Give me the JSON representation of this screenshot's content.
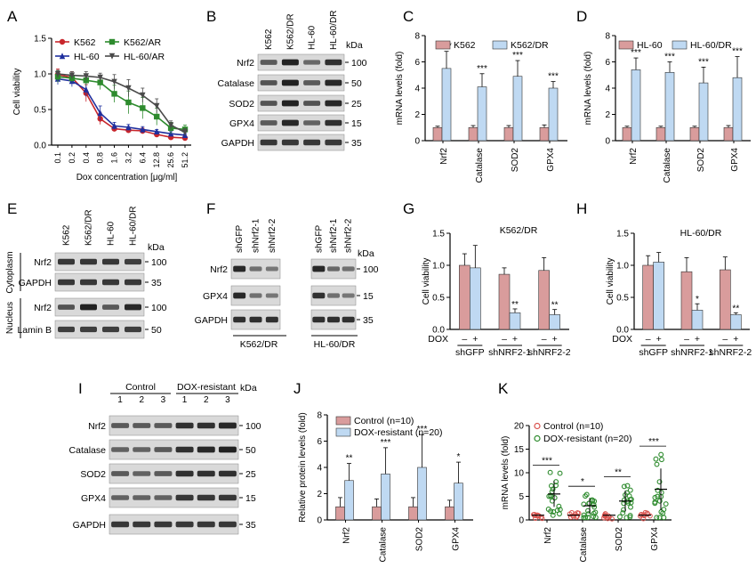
{
  "colors": {
    "red": "#c8262c",
    "blue": "#1f2f9e",
    "green": "#2e8b2e",
    "darkgray": "#4a4a4a",
    "pink": "#d99c9c",
    "lightblue": "#bfd9f2",
    "ctrl_red": "#d9534f",
    "res_green": "#2e8b2e",
    "blot_bg": "#d9d9d9",
    "band": "#1a1a1a"
  },
  "panelA": {
    "letter": "A",
    "ylabel": "Cell viability",
    "xlabel": "Dox concentration [μg/ml]",
    "chart_data": {
      "type": "line",
      "x": [
        "0.1",
        "0.2",
        "0.4",
        "0.8",
        "1.6",
        "3.2",
        "6.4",
        "12.8",
        "25.6",
        "51.2"
      ],
      "ylim": [
        0,
        1.5
      ],
      "yticks": [
        "0.0",
        "0.5",
        "1.0",
        "1.5"
      ],
      "series": [
        {
          "name": "K562",
          "color": "#c8262c",
          "marker": "circle",
          "values": [
            0.99,
            0.95,
            0.73,
            0.37,
            0.23,
            0.21,
            0.2,
            0.15,
            0.11,
            0.1
          ],
          "err": [
            0.08,
            0.08,
            0.12,
            0.08,
            0.04,
            0.04,
            0.04,
            0.03,
            0.02,
            0.02
          ]
        },
        {
          "name": "HL-60",
          "color": "#1f2f9e",
          "marker": "triangle",
          "values": [
            0.93,
            0.9,
            0.78,
            0.45,
            0.27,
            0.25,
            0.22,
            0.19,
            0.16,
            0.14
          ],
          "err": [
            0.08,
            0.08,
            0.1,
            0.1,
            0.05,
            0.04,
            0.04,
            0.03,
            0.03,
            0.02
          ]
        },
        {
          "name": "K562/AR",
          "color": "#2e8b2e",
          "marker": "square",
          "values": [
            0.96,
            0.94,
            0.91,
            0.88,
            0.72,
            0.6,
            0.52,
            0.4,
            0.24,
            0.22
          ],
          "err": [
            0.08,
            0.06,
            0.07,
            0.1,
            0.12,
            0.16,
            0.15,
            0.12,
            0.08,
            0.06
          ]
        },
        {
          "name": "HL-60/AR",
          "color": "#4a4a4a",
          "marker": "triangle-down",
          "values": [
            1.0,
            0.98,
            0.97,
            0.95,
            0.89,
            0.8,
            0.7,
            0.55,
            0.28,
            0.18
          ],
          "err": [
            0.05,
            0.05,
            0.06,
            0.06,
            0.1,
            0.12,
            0.1,
            0.1,
            0.06,
            0.05
          ]
        }
      ]
    }
  },
  "panelB": {
    "letter": "B",
    "kda": "kDa",
    "lanes": [
      "K562",
      "K562/DR",
      "HL-60",
      "HL-60/DR"
    ],
    "rows": [
      {
        "label": "Nrf2",
        "marker": "100",
        "bands": [
          0.55,
          0.95,
          0.45,
          0.85
        ]
      },
      {
        "label": "Catalase",
        "marker": "50",
        "bands": [
          0.6,
          0.95,
          0.55,
          0.9
        ]
      },
      {
        "label": "SOD2",
        "marker": "25",
        "bands": [
          0.6,
          0.95,
          0.6,
          0.9
        ]
      },
      {
        "label": "GPX4",
        "marker": "15",
        "bands": [
          0.55,
          0.9,
          0.5,
          0.85
        ]
      },
      {
        "label": "GAPDH",
        "marker": "35",
        "bands": [
          0.8,
          0.8,
          0.8,
          0.8
        ]
      }
    ]
  },
  "panelC": {
    "letter": "C",
    "ylabel": "mRNA levels (fold)",
    "chart_data": {
      "type": "bar",
      "categories": [
        "Nrf2",
        "Catalase",
        "SOD2",
        "GPX4"
      ],
      "ylim": [
        0,
        8
      ],
      "yticks": [
        "0",
        "2",
        "4",
        "6",
        "8"
      ],
      "series": [
        {
          "name": "K562",
          "color": "#d99c9c",
          "values": [
            1,
            1,
            1,
            1
          ],
          "err": [
            0.1,
            0.15,
            0.15,
            0.2
          ]
        },
        {
          "name": "K562/DR",
          "color": "#bfd9f2",
          "values": [
            5.5,
            4.1,
            4.9,
            4.0
          ],
          "err": [
            1.3,
            1.0,
            1.2,
            0.5
          ]
        }
      ],
      "sig": [
        "***",
        "***",
        "***",
        "***"
      ]
    }
  },
  "panelD": {
    "letter": "D",
    "ylabel": "mRNA levels (fold)",
    "chart_data": {
      "type": "bar",
      "categories": [
        "Nrf2",
        "Catalase",
        "SOD2",
        "GPX4"
      ],
      "ylim": [
        0,
        8
      ],
      "yticks": [
        "0",
        "2",
        "4",
        "6",
        "8"
      ],
      "series": [
        {
          "name": "HL-60",
          "color": "#d99c9c",
          "values": [
            1,
            1,
            1,
            1
          ],
          "err": [
            0.1,
            0.1,
            0.1,
            0.15
          ]
        },
        {
          "name": "HL-60/DR",
          "color": "#bfd9f2",
          "values": [
            5.4,
            5.2,
            4.4,
            4.8
          ],
          "err": [
            0.9,
            0.8,
            1.2,
            1.6
          ]
        }
      ],
      "sig": [
        "***",
        "***",
        "***",
        "***"
      ]
    }
  },
  "panelE": {
    "letter": "E",
    "kda": "kDa",
    "lanes": [
      "K562",
      "K562/DR",
      "HL-60",
      "HL-60/DR"
    ],
    "groups": [
      "Cytoplasm",
      "Nucleus"
    ],
    "rows": [
      {
        "label": "Nrf2",
        "marker": "100",
        "group": 0,
        "bands": [
          0.8,
          0.8,
          0.8,
          0.75
        ]
      },
      {
        "label": "GAPDH",
        "marker": "35",
        "group": 0,
        "bands": [
          0.8,
          0.8,
          0.8,
          0.8
        ]
      },
      {
        "label": "Nrf2",
        "marker": "100",
        "group": 1,
        "bands": [
          0.6,
          0.95,
          0.55,
          0.9
        ]
      },
      {
        "label": "Lamin B",
        "marker": "50",
        "group": 1,
        "bands": [
          0.75,
          0.75,
          0.75,
          0.75
        ]
      }
    ]
  },
  "panelF": {
    "letter": "F",
    "kda": "kDa",
    "lanes": [
      "shGFP",
      "shNrf2-1",
      "shNrf2-2",
      "shGFP",
      "shNrf2-1",
      "shNrf2-2"
    ],
    "groups": [
      "K562/DR",
      "HL-60/DR"
    ],
    "rows": [
      {
        "label": "Nrf2",
        "marker": "100",
        "bands": [
          0.9,
          0.4,
          0.35,
          0.9,
          0.45,
          0.4
        ]
      },
      {
        "label": "GPX4",
        "marker": "15",
        "bands": [
          0.9,
          0.4,
          0.35,
          0.85,
          0.4,
          0.35
        ]
      },
      {
        "label": "GAPDH",
        "marker": "35",
        "bands": [
          0.85,
          0.85,
          0.85,
          0.85,
          0.85,
          0.85
        ]
      }
    ]
  },
  "panelG": {
    "letter": "G",
    "title": "K562/DR",
    "ylabel": "Cell viability",
    "dox": "DOX",
    "signs": [
      "–",
      "+",
      "–",
      "+",
      "–",
      "+"
    ],
    "groups": [
      "shGFP",
      "shNRF2-1",
      "shNRF2-2"
    ],
    "chart_data": {
      "type": "bar",
      "ylim": [
        0,
        1.5
      ],
      "yticks": [
        "0.0",
        "0.5",
        "1.0",
        "1.5"
      ],
      "values": [
        1.0,
        0.96,
        0.86,
        0.26,
        0.92,
        0.23
      ],
      "err": [
        0.18,
        0.35,
        0.1,
        0.06,
        0.2,
        0.08
      ],
      "sig": [
        "",
        "",
        "",
        "**",
        "",
        "**"
      ]
    }
  },
  "panelH": {
    "letter": "H",
    "title": "HL-60/DR",
    "ylabel": "Cell viability",
    "dox": "DOX",
    "signs": [
      "–",
      "+",
      "–",
      "+",
      "–",
      "+"
    ],
    "groups": [
      "shGFP",
      "shNRF2-1",
      "shNRF2-2"
    ],
    "chart_data": {
      "type": "bar",
      "ylim": [
        0,
        1.5
      ],
      "yticks": [
        "0.0",
        "0.5",
        "1.0",
        "1.5"
      ],
      "values": [
        1.0,
        1.05,
        0.9,
        0.3,
        0.93,
        0.23
      ],
      "err": [
        0.15,
        0.15,
        0.22,
        0.1,
        0.2,
        0.03
      ],
      "sig": [
        "",
        "",
        "",
        "*",
        "",
        "**"
      ]
    }
  },
  "panelI": {
    "letter": "I",
    "kda": "kDa",
    "groups": [
      "Control",
      "DOX-resistant"
    ],
    "lanes": [
      "1",
      "2",
      "3",
      "1",
      "2",
      "3"
    ],
    "rows": [
      {
        "label": "Nrf2",
        "marker": "100",
        "bands": [
          0.55,
          0.55,
          0.55,
          0.85,
          0.85,
          0.9
        ]
      },
      {
        "label": "Catalase",
        "marker": "50",
        "bands": [
          0.5,
          0.5,
          0.55,
          0.85,
          0.9,
          0.95
        ]
      },
      {
        "label": "SOD2",
        "marker": "25",
        "bands": [
          0.55,
          0.5,
          0.55,
          0.85,
          0.85,
          0.85
        ]
      },
      {
        "label": "GPX4",
        "marker": "15",
        "bands": [
          0.5,
          0.5,
          0.5,
          0.8,
          0.8,
          0.8
        ]
      },
      {
        "label": "GAPDH",
        "marker": "35",
        "bands": [
          0.8,
          0.8,
          0.8,
          0.8,
          0.8,
          0.8
        ]
      }
    ]
  },
  "panelJ": {
    "letter": "J",
    "ylabel": "Relative protein levels (fold)",
    "chart_data": {
      "type": "bar",
      "categories": [
        "Nrf2",
        "Catalase",
        "SOD2",
        "GPX4"
      ],
      "ylim": [
        0,
        8
      ],
      "yticks": [
        "0",
        "2",
        "4",
        "6",
        "8"
      ],
      "series": [
        {
          "name": "Control (n=10)",
          "color": "#d99c9c",
          "values": [
            1,
            1,
            1,
            1
          ],
          "err": [
            0.7,
            0.6,
            0.7,
            0.5
          ]
        },
        {
          "name": "DOX-resistant (n=20)",
          "color": "#bfd9f2",
          "values": [
            3.0,
            3.5,
            4.0,
            2.8
          ],
          "err": [
            1.3,
            2.0,
            2.5,
            1.6
          ]
        }
      ],
      "sig": [
        "**",
        "***",
        "***",
        "*"
      ]
    }
  },
  "panelK": {
    "letter": "K",
    "ylabel": "mRNA levels (fold)",
    "chart_data": {
      "type": "scatter",
      "categories": [
        "Nrf2",
        "Catalase",
        "SOD2",
        "GPX4"
      ],
      "ylim": [
        0,
        20
      ],
      "yticks": [
        "0",
        "5",
        "10",
        "15",
        "20"
      ],
      "series": [
        {
          "name": "Control (n=10)",
          "color": "#d9534f",
          "means": [
            1,
            1,
            1,
            1
          ]
        },
        {
          "name": "DOX-resistant (n=20)",
          "color": "#2e8b2e",
          "means": [
            5.5,
            3.0,
            4.0,
            6.5
          ]
        }
      ],
      "sig": [
        "***",
        "*",
        "**",
        "***"
      ]
    }
  }
}
